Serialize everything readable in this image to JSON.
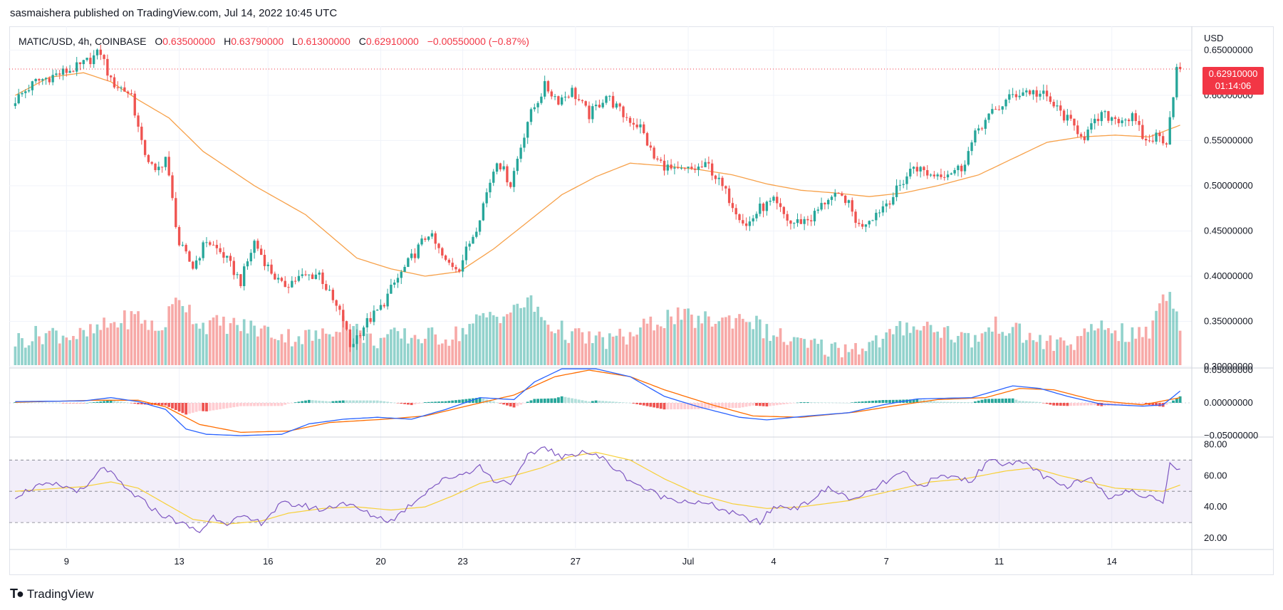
{
  "header": {
    "publisher_line": "sasmaishera published on TradingView.com, Jul 14, 2022 10:45 UTC"
  },
  "legend": {
    "symbol": "MATIC/USD, 4h, COINBASE",
    "open_label": "O",
    "open": "0.63500000",
    "high_label": "H",
    "high": "0.63790000",
    "low_label": "L",
    "low": "0.61300000",
    "close_label": "C",
    "close": "0.62910000",
    "change": "−0.00550000 (−0.87%)"
  },
  "footer": {
    "brand": "TradingView"
  },
  "colors": {
    "up": "#26a69a",
    "down": "#ef5350",
    "ma": "#f7a14a",
    "macd": "#2962ff",
    "signal": "#ff6d00",
    "rsi": "#7e57c2",
    "rsi_ma": "#f7d038",
    "price_label": "#f23645"
  },
  "chart_data": [
    {
      "type": "candlestick",
      "title": "MATIC/USD, 4h, COINBASE",
      "y_unit": "USD",
      "ylim": [
        0.3,
        0.67
      ],
      "y_ticks": [
        "0.65000000",
        "0.60000000",
        "0.55000000",
        "0.50000000",
        "0.45000000",
        "0.40000000",
        "0.35000000",
        "0.30000000"
      ],
      "x_ticks": [
        "9",
        "13",
        "16",
        "20",
        "23",
        "27",
        "Jul",
        "4",
        "7",
        "11",
        "14"
      ],
      "current_price": "0.62910000",
      "countdown": "01:14:06",
      "close_keypoints": [
        [
          0,
          0.595
        ],
        [
          6,
          0.615
        ],
        [
          16,
          0.628
        ],
        [
          19,
          0.632
        ],
        [
          25,
          0.648
        ],
        [
          28,
          0.615
        ],
        [
          34,
          0.601
        ],
        [
          37,
          0.545
        ],
        [
          41,
          0.513
        ],
        [
          44,
          0.532
        ],
        [
          48,
          0.435
        ],
        [
          52,
          0.41
        ],
        [
          56,
          0.44
        ],
        [
          61,
          0.423
        ],
        [
          66,
          0.394
        ],
        [
          70,
          0.438
        ],
        [
          74,
          0.41
        ],
        [
          78,
          0.389
        ],
        [
          83,
          0.398
        ],
        [
          89,
          0.403
        ],
        [
          93,
          0.372
        ],
        [
          96,
          0.352
        ],
        [
          98,
          0.322
        ],
        [
          102,
          0.345
        ],
        [
          107,
          0.365
        ],
        [
          111,
          0.392
        ],
        [
          116,
          0.42
        ],
        [
          121,
          0.448
        ],
        [
          126,
          0.415
        ],
        [
          130,
          0.41
        ],
        [
          135,
          0.455
        ],
        [
          141,
          0.53
        ],
        [
          145,
          0.502
        ],
        [
          150,
          0.572
        ],
        [
          155,
          0.61
        ],
        [
          159,
          0.595
        ],
        [
          163,
          0.605
        ],
        [
          168,
          0.578
        ],
        [
          173,
          0.6
        ],
        [
          178,
          0.578
        ],
        [
          183,
          0.565
        ],
        [
          187,
          0.53
        ],
        [
          193,
          0.515
        ],
        [
          198,
          0.518
        ],
        [
          203,
          0.522
        ],
        [
          209,
          0.486
        ],
        [
          214,
          0.455
        ],
        [
          218,
          0.475
        ],
        [
          222,
          0.482
        ],
        [
          227,
          0.458
        ],
        [
          233,
          0.464
        ],
        [
          238,
          0.487
        ],
        [
          243,
          0.486
        ],
        [
          247,
          0.455
        ],
        [
          252,
          0.47
        ],
        [
          257,
          0.489
        ],
        [
          263,
          0.522
        ],
        [
          268,
          0.512
        ],
        [
          273,
          0.515
        ],
        [
          277,
          0.52
        ],
        [
          282,
          0.564
        ],
        [
          286,
          0.58
        ],
        [
          292,
          0.6
        ],
        [
          296,
          0.605
        ],
        [
          301,
          0.6
        ],
        [
          306,
          0.581
        ],
        [
          310,
          0.565
        ],
        [
          313,
          0.555
        ],
        [
          318,
          0.578
        ],
        [
          323,
          0.574
        ],
        [
          327,
          0.575
        ],
        [
          331,
          0.548
        ],
        [
          334,
          0.555
        ],
        [
          337,
          0.55
        ],
        [
          340,
          0.629
        ]
      ],
      "ma_keypoints": [
        [
          0,
          0.6
        ],
        [
          10,
          0.62
        ],
        [
          20,
          0.625
        ],
        [
          28,
          0.615
        ],
        [
          36,
          0.595
        ],
        [
          45,
          0.575
        ],
        [
          55,
          0.538
        ],
        [
          70,
          0.5
        ],
        [
          85,
          0.468
        ],
        [
          100,
          0.42
        ],
        [
          110,
          0.408
        ],
        [
          120,
          0.4
        ],
        [
          130,
          0.405
        ],
        [
          140,
          0.43
        ],
        [
          150,
          0.46
        ],
        [
          160,
          0.49
        ],
        [
          170,
          0.51
        ],
        [
          180,
          0.525
        ],
        [
          190,
          0.522
        ],
        [
          200,
          0.518
        ],
        [
          210,
          0.512
        ],
        [
          220,
          0.502
        ],
        [
          230,
          0.495
        ],
        [
          240,
          0.492
        ],
        [
          250,
          0.488
        ],
        [
          260,
          0.492
        ],
        [
          270,
          0.5
        ],
        [
          282,
          0.512
        ],
        [
          292,
          0.53
        ],
        [
          302,
          0.548
        ],
        [
          312,
          0.554
        ],
        [
          322,
          0.556
        ],
        [
          332,
          0.554
        ],
        [
          341,
          0.567
        ]
      ],
      "volume_keypoints": [
        [
          0,
          0.3
        ],
        [
          10,
          0.4
        ],
        [
          20,
          0.35
        ],
        [
          28,
          0.5
        ],
        [
          36,
          0.6
        ],
        [
          42,
          0.4
        ],
        [
          48,
          0.85
        ],
        [
          54,
          0.5
        ],
        [
          62,
          0.5
        ],
        [
          70,
          0.45
        ],
        [
          80,
          0.35
        ],
        [
          90,
          0.35
        ],
        [
          96,
          0.55
        ],
        [
          104,
          0.3
        ],
        [
          112,
          0.35
        ],
        [
          120,
          0.35
        ],
        [
          128,
          0.35
        ],
        [
          138,
          0.6
        ],
        [
          146,
          0.65
        ],
        [
          150,
          0.8
        ],
        [
          156,
          0.5
        ],
        [
          164,
          0.35
        ],
        [
          172,
          0.3
        ],
        [
          180,
          0.35
        ],
        [
          186,
          0.5
        ],
        [
          192,
          0.6
        ],
        [
          200,
          0.55
        ],
        [
          208,
          0.55
        ],
        [
          214,
          0.6
        ],
        [
          220,
          0.4
        ],
        [
          230,
          0.25
        ],
        [
          240,
          0.2
        ],
        [
          250,
          0.25
        ],
        [
          256,
          0.35
        ],
        [
          262,
          0.5
        ],
        [
          270,
          0.45
        ],
        [
          280,
          0.3
        ],
        [
          288,
          0.5
        ],
        [
          296,
          0.35
        ],
        [
          304,
          0.25
        ],
        [
          312,
          0.3
        ],
        [
          318,
          0.5
        ],
        [
          326,
          0.35
        ],
        [
          332,
          0.4
        ],
        [
          336,
          0.9
        ],
        [
          339,
          0.8
        ],
        [
          342,
          0.35
        ]
      ]
    },
    {
      "type": "macd",
      "ylim": [
        -0.05,
        0.05
      ],
      "y_ticks": [
        "0.05000000",
        "0.00000000",
        "−0.05000000"
      ],
      "macd_keypoints": [
        [
          0,
          0.002
        ],
        [
          20,
          0.003
        ],
        [
          28,
          0.008
        ],
        [
          36,
          0.002
        ],
        [
          44,
          -0.01
        ],
        [
          50,
          -0.04
        ],
        [
          56,
          -0.048
        ],
        [
          66,
          -0.05
        ],
        [
          78,
          -0.048
        ],
        [
          86,
          -0.032
        ],
        [
          96,
          -0.025
        ],
        [
          106,
          -0.022
        ],
        [
          116,
          -0.025
        ],
        [
          126,
          -0.01
        ],
        [
          136,
          0.008
        ],
        [
          146,
          0.005
        ],
        [
          152,
          0.032
        ],
        [
          160,
          0.052
        ],
        [
          170,
          0.052
        ],
        [
          180,
          0.04
        ],
        [
          190,
          0.01
        ],
        [
          200,
          -0.006
        ],
        [
          212,
          -0.022
        ],
        [
          220,
          -0.026
        ],
        [
          232,
          -0.02
        ],
        [
          244,
          -0.015
        ],
        [
          254,
          -0.003
        ],
        [
          264,
          0.006
        ],
        [
          280,
          0.008
        ],
        [
          292,
          0.026
        ],
        [
          300,
          0.022
        ],
        [
          308,
          0.01
        ],
        [
          318,
          -0.002
        ],
        [
          330,
          -0.005
        ],
        [
          336,
          -0.003
        ],
        [
          341,
          0.018
        ]
      ],
      "signal_keypoints": [
        [
          0,
          0.001
        ],
        [
          24,
          0.004
        ],
        [
          36,
          0.004
        ],
        [
          44,
          -0.006
        ],
        [
          54,
          -0.033
        ],
        [
          66,
          -0.045
        ],
        [
          80,
          -0.043
        ],
        [
          92,
          -0.03
        ],
        [
          108,
          -0.025
        ],
        [
          120,
          -0.02
        ],
        [
          132,
          -0.005
        ],
        [
          146,
          0.012
        ],
        [
          158,
          0.04
        ],
        [
          168,
          0.05
        ],
        [
          180,
          0.04
        ],
        [
          190,
          0.02
        ],
        [
          204,
          -0.003
        ],
        [
          216,
          -0.02
        ],
        [
          230,
          -0.022
        ],
        [
          246,
          -0.014
        ],
        [
          258,
          -0.004
        ],
        [
          270,
          0.005
        ],
        [
          284,
          0.008
        ],
        [
          294,
          0.022
        ],
        [
          304,
          0.02
        ],
        [
          316,
          0.004
        ],
        [
          330,
          -0.003
        ],
        [
          341,
          0.008
        ]
      ]
    },
    {
      "type": "rsi",
      "ylim": [
        15,
        82
      ],
      "y_ticks": [
        "80.00",
        "60.00",
        "40.00",
        "20.00"
      ],
      "band": [
        30,
        70
      ],
      "midline": 50,
      "rsi_keypoints": [
        [
          0,
          47
        ],
        [
          6,
          53
        ],
        [
          12,
          54
        ],
        [
          20,
          50
        ],
        [
          26,
          66
        ],
        [
          32,
          52
        ],
        [
          36,
          46
        ],
        [
          42,
          36
        ],
        [
          48,
          30
        ],
        [
          54,
          24
        ],
        [
          58,
          34
        ],
        [
          62,
          30
        ],
        [
          66,
          33
        ],
        [
          72,
          30
        ],
        [
          78,
          42
        ],
        [
          84,
          41
        ],
        [
          90,
          38
        ],
        [
          96,
          43
        ],
        [
          104,
          35
        ],
        [
          110,
          31
        ],
        [
          116,
          42
        ],
        [
          122,
          53
        ],
        [
          126,
          58
        ],
        [
          132,
          62
        ],
        [
          136,
          66
        ],
        [
          140,
          57
        ],
        [
          146,
          56
        ],
        [
          150,
          72
        ],
        [
          155,
          79
        ],
        [
          160,
          71
        ],
        [
          166,
          76
        ],
        [
          172,
          71
        ],
        [
          178,
          60
        ],
        [
          184,
          52
        ],
        [
          190,
          46
        ],
        [
          196,
          44
        ],
        [
          204,
          41
        ],
        [
          212,
          34
        ],
        [
          218,
          30
        ],
        [
          222,
          40
        ],
        [
          230,
          40
        ],
        [
          238,
          52
        ],
        [
          246,
          44
        ],
        [
          254,
          55
        ],
        [
          260,
          62
        ],
        [
          264,
          53
        ],
        [
          272,
          60
        ],
        [
          280,
          57
        ],
        [
          286,
          72
        ],
        [
          290,
          67
        ],
        [
          296,
          68
        ],
        [
          302,
          58
        ],
        [
          308,
          52
        ],
        [
          314,
          60
        ],
        [
          320,
          47
        ],
        [
          326,
          50
        ],
        [
          332,
          46
        ],
        [
          336,
          44
        ],
        [
          338,
          68
        ],
        [
          341,
          64
        ]
      ],
      "rsi_ma_keypoints": [
        [
          0,
          50
        ],
        [
          20,
          53
        ],
        [
          28,
          56
        ],
        [
          36,
          52
        ],
        [
          44,
          42
        ],
        [
          52,
          32
        ],
        [
          62,
          29
        ],
        [
          72,
          31
        ],
        [
          80,
          36
        ],
        [
          90,
          39
        ],
        [
          100,
          40
        ],
        [
          110,
          38
        ],
        [
          120,
          40
        ],
        [
          128,
          47
        ],
        [
          136,
          55
        ],
        [
          146,
          60
        ],
        [
          154,
          65
        ],
        [
          162,
          72
        ],
        [
          170,
          75
        ],
        [
          180,
          70
        ],
        [
          190,
          58
        ],
        [
          200,
          48
        ],
        [
          210,
          42
        ],
        [
          220,
          39
        ],
        [
          230,
          40
        ],
        [
          244,
          44
        ],
        [
          256,
          50
        ],
        [
          268,
          56
        ],
        [
          278,
          58
        ],
        [
          290,
          63
        ],
        [
          298,
          65
        ],
        [
          306,
          60
        ],
        [
          314,
          56
        ],
        [
          322,
          52
        ],
        [
          330,
          51
        ],
        [
          336,
          50
        ],
        [
          341,
          54
        ]
      ]
    }
  ]
}
